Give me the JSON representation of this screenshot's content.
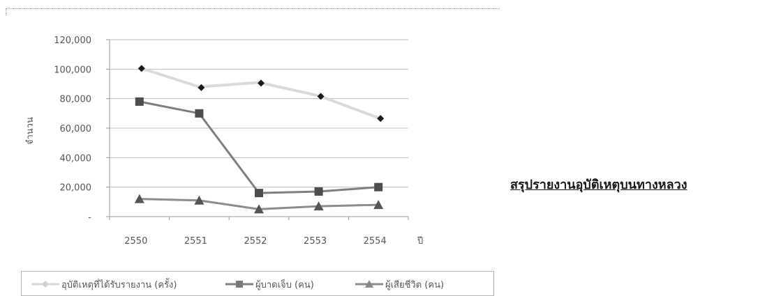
{
  "chart_data": {
    "type": "line",
    "title": "",
    "xlabel": "ปี",
    "ylabel": "จำนวน",
    "categories": [
      "2550",
      "2551",
      "2552",
      "2553",
      "2554"
    ],
    "ylim": [
      0,
      120000
    ],
    "yticks": [
      0,
      20000,
      40000,
      60000,
      80000,
      100000,
      120000
    ],
    "ytick_labels": [
      "-",
      "20,000",
      "40,000",
      "60,000",
      "80,000",
      "100,000",
      "120,000"
    ],
    "grid": true,
    "legend_position": "bottom",
    "series": [
      {
        "name": "อุบัติเหตุที่ได้รับรายงาน (ครั้ง)",
        "values": [
          101000,
          88000,
          91000,
          82000,
          67000
        ],
        "color": "#d9d9d9",
        "marker": "diamond",
        "marker_color": "#1a1a1a"
      },
      {
        "name": "ผู้บาดเจ็บ (คน)",
        "values": [
          78000,
          70000,
          16000,
          17000,
          20000
        ],
        "color": "#7f7f7f",
        "marker": "square",
        "marker_color": "#4d4d4d"
      },
      {
        "name": "ผู้เสียชีวิต (คน)",
        "values": [
          12000,
          11000,
          5000,
          7000,
          8000
        ],
        "color": "#8c8c8c",
        "marker": "triangle",
        "marker_color": "#555555"
      }
    ]
  },
  "side_heading": "สรุปรายงานอุบัติเหตุบนทางหลวง"
}
